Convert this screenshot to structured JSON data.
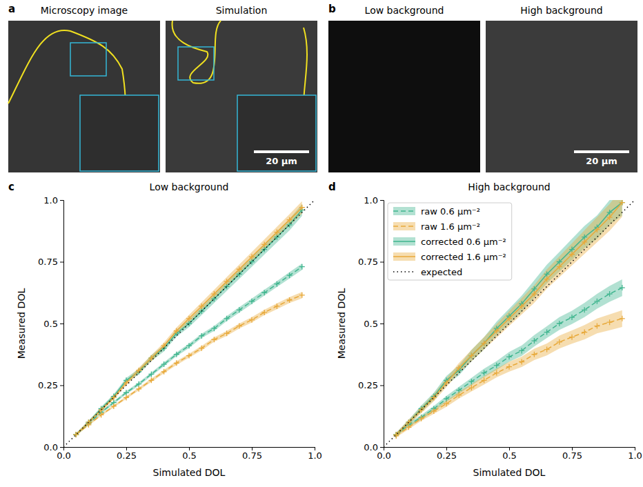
{
  "images": {
    "panels": [
      {
        "letter": "a",
        "titles": [
          "Microscopy image",
          "Simulation"
        ],
        "scale_bar": "20 µm"
      },
      {
        "letter": "b",
        "titles": [
          "Low background",
          "High background"
        ],
        "scale_bar": "20 µm"
      }
    ]
  },
  "chart_data": [
    {
      "type": "line",
      "letter": "c",
      "title": "Low background",
      "x_label": "Simulated DOL",
      "y_label": "Measured DOL",
      "xlim": [
        0,
        1
      ],
      "ylim": [
        0,
        1
      ],
      "xticks": [
        {
          "value": 0,
          "label": "0.0"
        },
        0.25,
        0.5,
        0.75,
        {
          "value": 1,
          "label": "1.0"
        }
      ],
      "yticks": [
        {
          "value": 0,
          "label": "0.0"
        },
        0.25,
        0.5,
        0.75,
        {
          "value": 1,
          "label": "1.0"
        }
      ],
      "series": [
        {
          "color": "#3fb58e",
          "line_style": "dashed",
          "marker": "plus",
          "x": [
            0.05,
            0.1,
            0.15,
            0.2,
            0.25,
            0.3,
            0.35,
            0.4,
            0.45,
            0.5,
            0.55,
            0.6,
            0.65,
            0.7,
            0.75,
            0.8,
            0.85,
            0.9,
            0.95
          ],
          "values": [
            0.05,
            0.095,
            0.14,
            0.18,
            0.22,
            0.255,
            0.295,
            0.335,
            0.375,
            0.41,
            0.45,
            0.48,
            0.52,
            0.555,
            0.59,
            0.625,
            0.66,
            0.695,
            0.73
          ],
          "error": [
            0.004,
            0.005,
            0.005,
            0.006,
            0.006,
            0.007,
            0.007,
            0.008,
            0.008,
            0.009,
            0.009,
            0.01,
            0.01,
            0.011,
            0.011,
            0.012,
            0.012,
            0.013,
            0.013
          ]
        },
        {
          "color": "#e8a93a",
          "line_style": "dashed",
          "marker": "plus",
          "x": [
            0.05,
            0.1,
            0.15,
            0.2,
            0.25,
            0.3,
            0.35,
            0.4,
            0.45,
            0.5,
            0.55,
            0.6,
            0.65,
            0.7,
            0.75,
            0.8,
            0.85,
            0.9,
            0.95
          ],
          "values": [
            0.05,
            0.09,
            0.13,
            0.165,
            0.2,
            0.235,
            0.27,
            0.305,
            0.34,
            0.37,
            0.4,
            0.435,
            0.46,
            0.49,
            0.515,
            0.545,
            0.57,
            0.595,
            0.615
          ],
          "error": [
            0.004,
            0.004,
            0.005,
            0.005,
            0.006,
            0.006,
            0.007,
            0.007,
            0.008,
            0.008,
            0.009,
            0.009,
            0.01,
            0.01,
            0.011,
            0.011,
            0.012,
            0.012,
            0.013
          ]
        },
        {
          "color": "#3fb58e",
          "line_style": "solid",
          "marker": "plus",
          "x": [
            0.05,
            0.1,
            0.15,
            0.2,
            0.25,
            0.3,
            0.35,
            0.4,
            0.45,
            0.5,
            0.55,
            0.6,
            0.65,
            0.7,
            0.75,
            0.8,
            0.85,
            0.9,
            0.95
          ],
          "values": [
            0.05,
            0.1,
            0.155,
            0.205,
            0.27,
            0.305,
            0.36,
            0.4,
            0.46,
            0.5,
            0.55,
            0.6,
            0.65,
            0.7,
            0.75,
            0.8,
            0.85,
            0.9,
            0.96
          ],
          "error": [
            0.006,
            0.007,
            0.008,
            0.009,
            0.01,
            0.011,
            0.012,
            0.013,
            0.014,
            0.015,
            0.016,
            0.017,
            0.018,
            0.019,
            0.02,
            0.021,
            0.022,
            0.023,
            0.024
          ]
        },
        {
          "color": "#e8a93a",
          "line_style": "solid",
          "marker": "plus",
          "x": [
            0.05,
            0.1,
            0.15,
            0.2,
            0.25,
            0.3,
            0.35,
            0.4,
            0.45,
            0.5,
            0.55,
            0.6,
            0.65,
            0.7,
            0.75,
            0.8,
            0.85,
            0.9,
            0.95
          ],
          "values": [
            0.05,
            0.1,
            0.15,
            0.2,
            0.26,
            0.31,
            0.36,
            0.41,
            0.47,
            0.52,
            0.57,
            0.62,
            0.67,
            0.72,
            0.77,
            0.82,
            0.87,
            0.92,
            0.97
          ],
          "error": [
            0.006,
            0.007,
            0.008,
            0.009,
            0.01,
            0.011,
            0.012,
            0.013,
            0.014,
            0.015,
            0.016,
            0.017,
            0.018,
            0.019,
            0.02,
            0.021,
            0.022,
            0.023,
            0.025
          ]
        },
        {
          "color": "#000000",
          "line_style": "dotted",
          "x": [
            0,
            1
          ],
          "values": [
            0,
            1
          ]
        }
      ]
    },
    {
      "type": "line",
      "letter": "d",
      "title": "High background",
      "x_label": "Simulated DOL",
      "y_label": "Measured DOL",
      "xlim": [
        0,
        1
      ],
      "ylim": [
        0,
        1
      ],
      "xticks": [
        {
          "value": 0,
          "label": "0.0"
        },
        0.25,
        0.5,
        0.75,
        {
          "value": 1,
          "label": "1.0"
        }
      ],
      "yticks": [
        {
          "value": 0,
          "label": "0.0"
        },
        0.25,
        0.5,
        0.75,
        {
          "value": 1,
          "label": "1.0"
        }
      ],
      "legend": "upper left",
      "series": [
        {
          "name": "raw 0.6 µm⁻²",
          "color": "#3fb58e",
          "line_style": "dashed",
          "marker": "plus",
          "x": [
            0.05,
            0.1,
            0.15,
            0.2,
            0.25,
            0.3,
            0.35,
            0.4,
            0.45,
            0.5,
            0.55,
            0.6,
            0.65,
            0.7,
            0.75,
            0.8,
            0.85,
            0.9,
            0.95
          ],
          "values": [
            0.05,
            0.09,
            0.12,
            0.155,
            0.195,
            0.23,
            0.265,
            0.3,
            0.33,
            0.365,
            0.39,
            0.43,
            0.465,
            0.5,
            0.525,
            0.555,
            0.59,
            0.62,
            0.645
          ],
          "error": [
            0.006,
            0.008,
            0.009,
            0.011,
            0.012,
            0.014,
            0.015,
            0.017,
            0.018,
            0.02,
            0.021,
            0.023,
            0.024,
            0.026,
            0.027,
            0.029,
            0.03,
            0.032,
            0.034
          ]
        },
        {
          "name": "raw 1.6 µm⁻²",
          "color": "#e8a93a",
          "line_style": "dashed",
          "marker": "plus",
          "x": [
            0.05,
            0.1,
            0.15,
            0.2,
            0.25,
            0.3,
            0.35,
            0.4,
            0.45,
            0.5,
            0.55,
            0.6,
            0.65,
            0.7,
            0.75,
            0.8,
            0.85,
            0.9,
            0.95
          ],
          "values": [
            0.045,
            0.08,
            0.115,
            0.145,
            0.175,
            0.21,
            0.24,
            0.27,
            0.3,
            0.325,
            0.345,
            0.375,
            0.395,
            0.425,
            0.445,
            0.465,
            0.49,
            0.505,
            0.52
          ],
          "error": [
            0.006,
            0.008,
            0.009,
            0.011,
            0.012,
            0.014,
            0.015,
            0.017,
            0.018,
            0.02,
            0.021,
            0.023,
            0.024,
            0.026,
            0.027,
            0.029,
            0.03,
            0.032,
            0.034
          ]
        },
        {
          "name": "corrected 0.6 µm⁻²",
          "color": "#3fb58e",
          "line_style": "solid",
          "marker": "plus",
          "x": [
            0.05,
            0.1,
            0.15,
            0.2,
            0.25,
            0.3,
            0.35,
            0.4,
            0.45,
            0.5,
            0.55,
            0.6,
            0.65,
            0.7,
            0.75,
            0.8,
            0.85,
            0.9,
            0.95
          ],
          "values": [
            0.05,
            0.1,
            0.155,
            0.205,
            0.27,
            0.31,
            0.37,
            0.42,
            0.48,
            0.53,
            0.58,
            0.64,
            0.7,
            0.75,
            0.8,
            0.85,
            0.89,
            0.95,
            0.99
          ],
          "error": [
            0.008,
            0.01,
            0.013,
            0.015,
            0.018,
            0.02,
            0.023,
            0.025,
            0.028,
            0.03,
            0.033,
            0.035,
            0.038,
            0.04,
            0.043,
            0.045,
            0.048,
            0.05,
            0.053
          ]
        },
        {
          "name": "corrected 1.6 µm⁻²",
          "color": "#e8a93a",
          "line_style": "solid",
          "marker": "plus",
          "x": [
            0.05,
            0.1,
            0.15,
            0.2,
            0.25,
            0.3,
            0.35,
            0.4,
            0.45,
            0.5,
            0.55,
            0.6,
            0.65,
            0.7,
            0.75,
            0.8,
            0.85,
            0.9,
            0.95
          ],
          "values": [
            0.05,
            0.1,
            0.15,
            0.2,
            0.26,
            0.32,
            0.37,
            0.42,
            0.47,
            0.52,
            0.57,
            0.62,
            0.68,
            0.73,
            0.78,
            0.83,
            0.88,
            0.93,
            0.99
          ],
          "error": [
            0.008,
            0.01,
            0.013,
            0.015,
            0.018,
            0.02,
            0.023,
            0.025,
            0.028,
            0.03,
            0.033,
            0.036,
            0.039,
            0.042,
            0.045,
            0.048,
            0.051,
            0.054,
            0.058
          ]
        },
        {
          "name": "expected",
          "color": "#000000",
          "line_style": "dotted",
          "x": [
            0,
            1
          ],
          "values": [
            0,
            1
          ]
        }
      ]
    }
  ]
}
